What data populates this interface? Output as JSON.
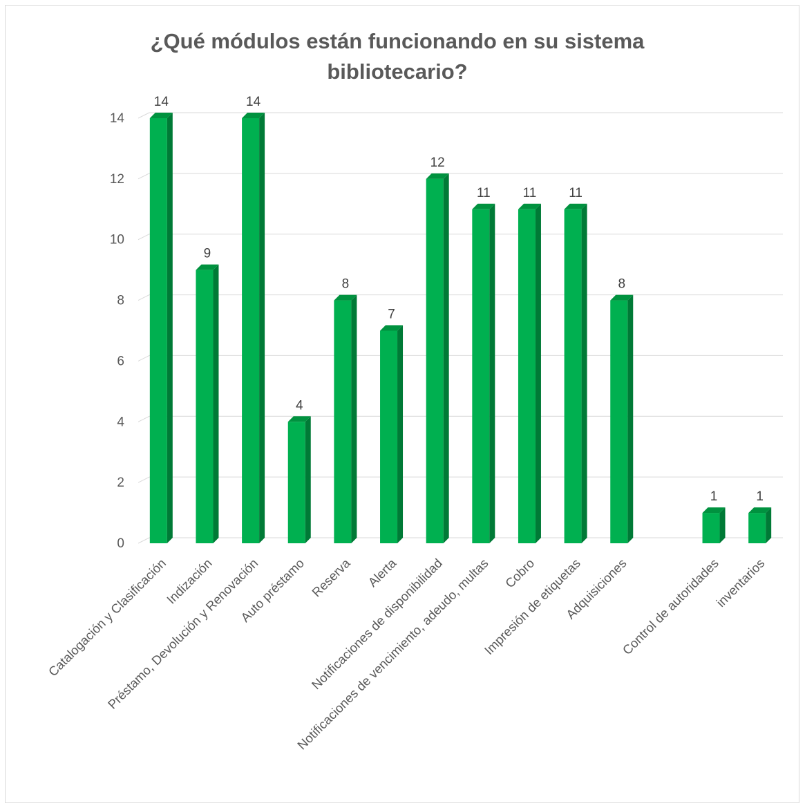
{
  "chart_data": {
    "type": "bar",
    "title": "¿Qué módulos están  funcionando en su sistema bibliotecario?",
    "xlabel": "",
    "ylabel": "",
    "ylim": [
      0,
      14
    ],
    "yticks": [
      0,
      2,
      4,
      6,
      8,
      10,
      12,
      14
    ],
    "grid": true,
    "legend": "none",
    "bar_color": "#00b050",
    "bar_side_color": "#007a36",
    "bar_top_color": "#00923f",
    "categories": [
      "Catalogación y Clasificación",
      "Indización",
      "Préstamo, Devolución y Renovación",
      "Auto préstamo",
      "Reserva",
      "Alerta",
      "Notificaciones de disponibilidad",
      "Notificaciones de vencimiento, adeudo, multas",
      "Cobro",
      "Impresión de etiquetas",
      "Adquisiciones",
      "",
      "Control de autoridades",
      "inventarios"
    ],
    "values": [
      14,
      9,
      14,
      4,
      8,
      7,
      12,
      11,
      11,
      11,
      8,
      null,
      1,
      1
    ]
  }
}
